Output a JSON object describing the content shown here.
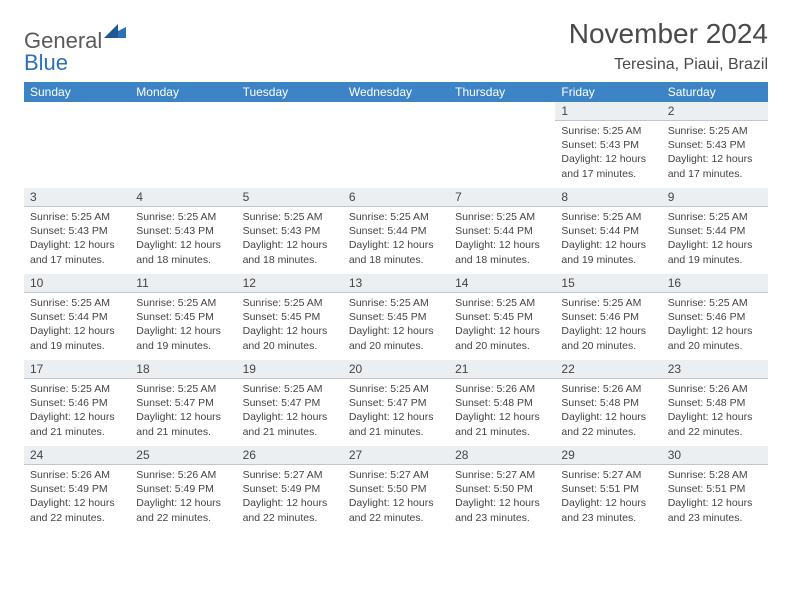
{
  "logo": {
    "word1": "General",
    "word2": "Blue"
  },
  "title": "November 2024",
  "location": "Teresina, Piaui, Brazil",
  "colors": {
    "header_bg": "#3c84c6",
    "header_text": "#ffffff",
    "daynum_bg": "#eceff1",
    "text": "#444444",
    "logo_gray": "#5a5a5a",
    "logo_blue": "#2b70b8"
  },
  "weekdays": [
    "Sunday",
    "Monday",
    "Tuesday",
    "Wednesday",
    "Thursday",
    "Friday",
    "Saturday"
  ],
  "weeks": [
    [
      {
        "blank": true
      },
      {
        "blank": true
      },
      {
        "blank": true
      },
      {
        "blank": true
      },
      {
        "blank": true
      },
      {
        "day": 1,
        "sunrise": "5:25 AM",
        "sunset": "5:43 PM",
        "daylight": "12 hours and 17 minutes."
      },
      {
        "day": 2,
        "sunrise": "5:25 AM",
        "sunset": "5:43 PM",
        "daylight": "12 hours and 17 minutes."
      }
    ],
    [
      {
        "day": 3,
        "sunrise": "5:25 AM",
        "sunset": "5:43 PM",
        "daylight": "12 hours and 17 minutes."
      },
      {
        "day": 4,
        "sunrise": "5:25 AM",
        "sunset": "5:43 PM",
        "daylight": "12 hours and 18 minutes."
      },
      {
        "day": 5,
        "sunrise": "5:25 AM",
        "sunset": "5:43 PM",
        "daylight": "12 hours and 18 minutes."
      },
      {
        "day": 6,
        "sunrise": "5:25 AM",
        "sunset": "5:44 PM",
        "daylight": "12 hours and 18 minutes."
      },
      {
        "day": 7,
        "sunrise": "5:25 AM",
        "sunset": "5:44 PM",
        "daylight": "12 hours and 18 minutes."
      },
      {
        "day": 8,
        "sunrise": "5:25 AM",
        "sunset": "5:44 PM",
        "daylight": "12 hours and 19 minutes."
      },
      {
        "day": 9,
        "sunrise": "5:25 AM",
        "sunset": "5:44 PM",
        "daylight": "12 hours and 19 minutes."
      }
    ],
    [
      {
        "day": 10,
        "sunrise": "5:25 AM",
        "sunset": "5:44 PM",
        "daylight": "12 hours and 19 minutes."
      },
      {
        "day": 11,
        "sunrise": "5:25 AM",
        "sunset": "5:45 PM",
        "daylight": "12 hours and 19 minutes."
      },
      {
        "day": 12,
        "sunrise": "5:25 AM",
        "sunset": "5:45 PM",
        "daylight": "12 hours and 20 minutes."
      },
      {
        "day": 13,
        "sunrise": "5:25 AM",
        "sunset": "5:45 PM",
        "daylight": "12 hours and 20 minutes."
      },
      {
        "day": 14,
        "sunrise": "5:25 AM",
        "sunset": "5:45 PM",
        "daylight": "12 hours and 20 minutes."
      },
      {
        "day": 15,
        "sunrise": "5:25 AM",
        "sunset": "5:46 PM",
        "daylight": "12 hours and 20 minutes."
      },
      {
        "day": 16,
        "sunrise": "5:25 AM",
        "sunset": "5:46 PM",
        "daylight": "12 hours and 20 minutes."
      }
    ],
    [
      {
        "day": 17,
        "sunrise": "5:25 AM",
        "sunset": "5:46 PM",
        "daylight": "12 hours and 21 minutes."
      },
      {
        "day": 18,
        "sunrise": "5:25 AM",
        "sunset": "5:47 PM",
        "daylight": "12 hours and 21 minutes."
      },
      {
        "day": 19,
        "sunrise": "5:25 AM",
        "sunset": "5:47 PM",
        "daylight": "12 hours and 21 minutes."
      },
      {
        "day": 20,
        "sunrise": "5:25 AM",
        "sunset": "5:47 PM",
        "daylight": "12 hours and 21 minutes."
      },
      {
        "day": 21,
        "sunrise": "5:26 AM",
        "sunset": "5:48 PM",
        "daylight": "12 hours and 21 minutes."
      },
      {
        "day": 22,
        "sunrise": "5:26 AM",
        "sunset": "5:48 PM",
        "daylight": "12 hours and 22 minutes."
      },
      {
        "day": 23,
        "sunrise": "5:26 AM",
        "sunset": "5:48 PM",
        "daylight": "12 hours and 22 minutes."
      }
    ],
    [
      {
        "day": 24,
        "sunrise": "5:26 AM",
        "sunset": "5:49 PM",
        "daylight": "12 hours and 22 minutes."
      },
      {
        "day": 25,
        "sunrise": "5:26 AM",
        "sunset": "5:49 PM",
        "daylight": "12 hours and 22 minutes."
      },
      {
        "day": 26,
        "sunrise": "5:27 AM",
        "sunset": "5:49 PM",
        "daylight": "12 hours and 22 minutes."
      },
      {
        "day": 27,
        "sunrise": "5:27 AM",
        "sunset": "5:50 PM",
        "daylight": "12 hours and 22 minutes."
      },
      {
        "day": 28,
        "sunrise": "5:27 AM",
        "sunset": "5:50 PM",
        "daylight": "12 hours and 23 minutes."
      },
      {
        "day": 29,
        "sunrise": "5:27 AM",
        "sunset": "5:51 PM",
        "daylight": "12 hours and 23 minutes."
      },
      {
        "day": 30,
        "sunrise": "5:28 AM",
        "sunset": "5:51 PM",
        "daylight": "12 hours and 23 minutes."
      }
    ]
  ],
  "labels": {
    "sunrise": "Sunrise:",
    "sunset": "Sunset:",
    "daylight": "Daylight:"
  }
}
